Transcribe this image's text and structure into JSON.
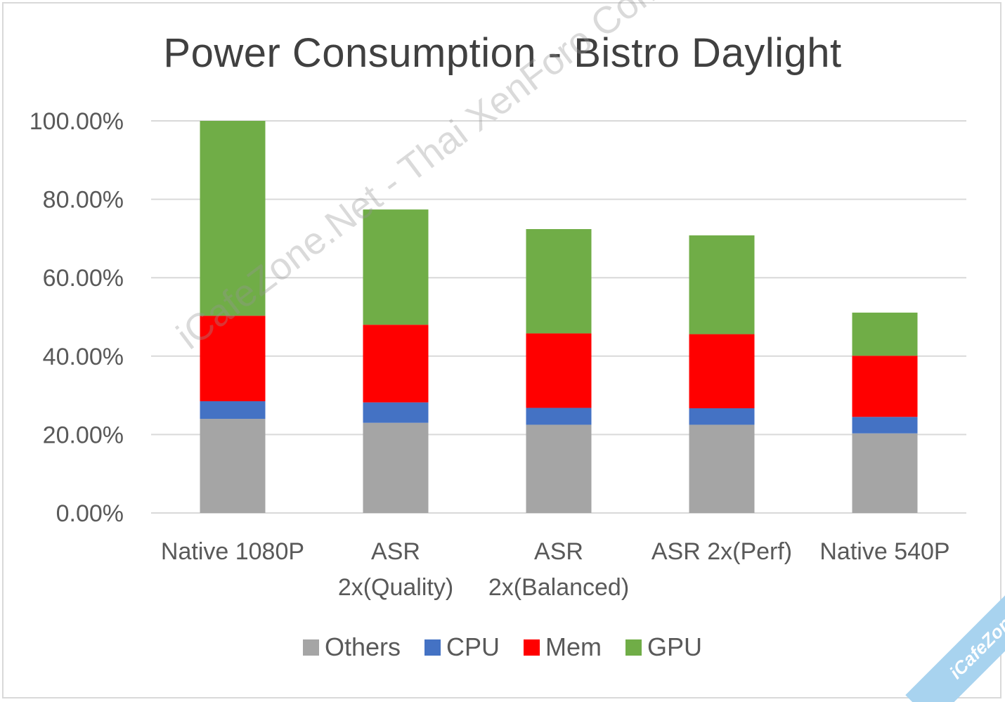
{
  "chart_data": {
    "type": "bar",
    "stacked": true,
    "title": "Power Consumption  - Bistro Daylight",
    "categories": [
      [
        "Native 1080P"
      ],
      [
        "ASR",
        "2x(Quality)"
      ],
      [
        "ASR",
        "2x(Balanced)"
      ],
      [
        "ASR 2x(Perf)"
      ],
      [
        "Native 540P"
      ]
    ],
    "series": [
      {
        "name": "Others",
        "color": "#a5a5a5",
        "values": [
          24.0,
          23.0,
          22.5,
          22.5,
          20.3
        ]
      },
      {
        "name": "CPU",
        "color": "#4472c4",
        "values": [
          4.5,
          5.2,
          4.3,
          4.2,
          4.2
        ]
      },
      {
        "name": "Mem",
        "color": "#ff0000",
        "values": [
          21.8,
          19.8,
          19.0,
          18.9,
          15.6
        ]
      },
      {
        "name": "GPU",
        "color": "#70ad47",
        "values": [
          49.7,
          29.4,
          26.6,
          25.2,
          11.0
        ]
      }
    ],
    "ylim": [
      0,
      100
    ],
    "yticks": [
      "0.00%",
      "20.00%",
      "40.00%",
      "60.00%",
      "80.00%",
      "100.00%"
    ],
    "ytick_values": [
      0,
      20,
      40,
      60,
      80,
      100
    ],
    "xlabel": "",
    "ylabel": "",
    "grid": true,
    "legend": "bottom"
  },
  "watermark": "iCafeZone.Net - Thai XenForo Community",
  "corner_badge": "iCafeZone"
}
